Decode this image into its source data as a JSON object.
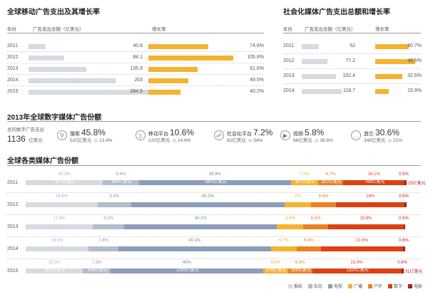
{
  "colors": {
    "paper": "#d5dbe1",
    "magazine": "#b2bccb",
    "tv": "#8c9dba",
    "radio": "#f4b330",
    "outdoor": "#ea8123",
    "digital": "#dd4012",
    "film": "#b61c1c"
  },
  "mobile": {
    "title": "全球移动广告支出及其增长率",
    "col_year": "年份",
    "col_spend": "广告支出总额（亿美元）",
    "col_growth": "增长率"
  },
  "social": {
    "title": "社会化媒体广告支出总额和增长率",
    "col_year": "年份",
    "col_spend": "广告支出总额（亿美元）",
    "col_growth": "增长率"
  },
  "share2013": {
    "title": "2013年全球数字媒体广告份额",
    "total_label": "总的数字广告支出",
    "total_value": "1136",
    "total_unit": "亿美元",
    "items": [
      {
        "icon": "search-icon",
        "glyph": "⚲",
        "name": "搜索",
        "pct": "45.8%",
        "amount": "520亿美元",
        "growth": "13.4%"
      },
      {
        "icon": "mobile-icon",
        "glyph": "▯",
        "name": "移动平台",
        "pct": "10.6%",
        "amount": "120亿美元",
        "growth": "14.6%"
      },
      {
        "icon": "social-icon",
        "glyph": "☍",
        "name": "社会化平台",
        "pct": "7.2%",
        "amount": "82亿美元",
        "growth": "54%"
      },
      {
        "icon": "video-icon",
        "glyph": "▶",
        "name": "视频",
        "pct": "5.8%",
        "amount": "66亿美元",
        "growth": "39.6%"
      },
      {
        "icon": "other-icon",
        "glyph": "…",
        "name": "其它",
        "pct": "30.6%",
        "amount": "348亿美元",
        "growth": "21%"
      }
    ]
  },
  "global": {
    "title": "全球各类媒体广告份额"
  },
  "chart_data": [
    {
      "type": "bar",
      "title": "全球移动广告支出及其增长率",
      "categories": [
        "2011",
        "2012",
        "2013",
        "2014",
        "2015"
      ],
      "series": [
        {
          "name": "广告支出总额（亿美元）",
          "values": [
            40.8,
            84.1,
            135.8,
            203,
            284.5
          ]
        },
        {
          "name": "增长率",
          "values": [
            74.6,
            105.8,
            61.6,
            49.5,
            40.2
          ],
          "unit": "%"
        }
      ]
    },
    {
      "type": "bar",
      "title": "社会化媒体广告支出总额和增长率",
      "categories": [
        "2011",
        "2012",
        "2013",
        "2014"
      ],
      "series": [
        {
          "name": "广告支出总额（亿美元）",
          "values": [
            52,
            77.2,
            102.4,
            118.7
          ]
        },
        {
          "name": "增长率",
          "values": [
            40.7,
            48.5,
            32.6,
            15.9
          ],
          "unit": "%"
        }
      ]
    },
    {
      "type": "bar",
      "stacked": true,
      "title": "全球各类媒体广告份额",
      "categories": [
        "2011",
        "2012",
        "2013",
        "2014",
        "2015"
      ],
      "legend": [
        "报纸",
        "杂志",
        "电视",
        "广播",
        "户外",
        "数字",
        "电影"
      ],
      "legend_position": "bottom-right",
      "series": [
        {
          "name": "报纸",
          "values": [
            20.3,
            18.9,
            17.6,
            16.5,
            15.0
          ],
          "labels": [
            "957亿美元",
            "",
            "",
            "",
            "901亿美元"
          ]
        },
        {
          "name": "杂志",
          "values": [
            9.4,
            8.8,
            8.3,
            7.8,
            7.3
          ],
          "labels": [
            "450亿美元",
            "",
            "",
            "",
            "416亿美元"
          ]
        },
        {
          "name": "电视",
          "values": [
            39.9,
            40.2,
            40.1,
            40.1,
            40.0
          ],
          "labels": [
            "1901亿美元",
            "",
            "",
            "",
            "2255亿美元"
          ]
        },
        {
          "name": "广播",
          "values": [
            7.1,
            7.0,
            6.9,
            6.7,
            6.6
          ],
          "labels": [
            "337亿美元",
            "",
            "",
            "",
            "378亿美元"
          ]
        },
        {
          "name": "户外",
          "values": [
            6.7,
            6.6,
            6.5,
            6.4,
            6.3
          ],
          "labels": [
            "317亿美元",
            "",
            "",
            "",
            "359亿美元"
          ]
        },
        {
          "name": "数字",
          "values": [
            16.1,
            18.0,
            19.8,
            21.6,
            23.4
          ],
          "labels": [
            "769亿美元",
            "",
            "",
            "",
            "1324亿美元"
          ]
        },
        {
          "name": "电影",
          "values": [
            0.5,
            0.5,
            0.5,
            0.6,
            0.6
          ],
          "labels": [
            "25亿美元",
            "",
            "",
            "",
            "31亿美元"
          ]
        }
      ],
      "share_labels": [
        [
          "20.3%",
          "9.4%",
          "39.9%",
          "7.1%",
          "6.7%",
          "16.1%",
          "0.5%"
        ],
        [
          "18.9%",
          "8.8%",
          "40.2%",
          "7%",
          "6.6%",
          "18%",
          "0.5%"
        ],
        [
          "17.6%",
          "8.3%",
          "40.1%",
          "6.9%",
          "6.5%",
          "19.8%",
          "0.5%"
        ],
        [
          "16.5%",
          "7.8%",
          "40.1%",
          "6.7%",
          "6.4%",
          "21.6%",
          "0.6%"
        ],
        [
          "15.0%",
          "7.3%",
          "40%",
          "6.6%",
          "6.3%",
          "23.4%",
          "0.6%"
        ]
      ]
    }
  ]
}
